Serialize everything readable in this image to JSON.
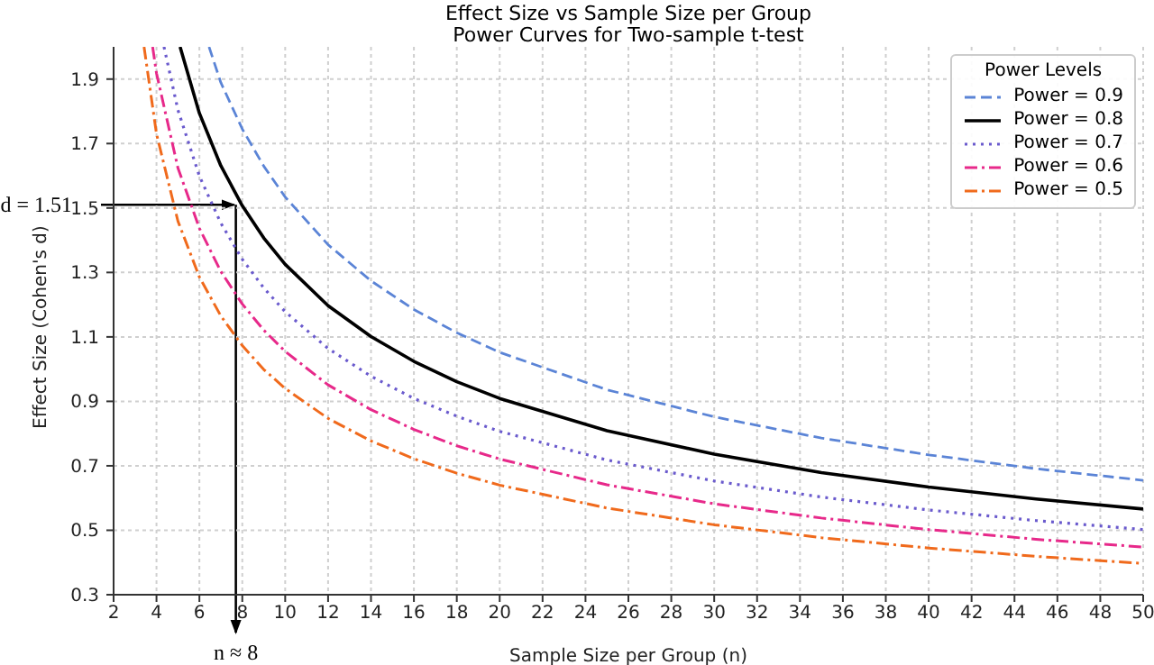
{
  "chart_data": {
    "type": "line",
    "title": "Effect Size vs Sample Size per Group",
    "subtitle": "Power Curves for Two-sample t-test",
    "xlabel": "Sample Size per Group (n)",
    "ylabel": "Effect Size (Cohen's d)",
    "legend_title": "Power Levels",
    "legend": "top right",
    "grid": true,
    "xlim": [
      2,
      50
    ],
    "xticks": [
      2,
      4,
      6,
      8,
      10,
      12,
      14,
      16,
      18,
      20,
      22,
      24,
      26,
      28,
      30,
      32,
      34,
      36,
      38,
      40,
      42,
      44,
      46,
      48,
      50
    ],
    "ylim": [
      0.3,
      2.0
    ],
    "yticks": [
      0.3,
      0.5,
      0.7,
      0.9,
      1.1,
      1.3,
      1.5,
      1.7,
      1.9
    ],
    "annotations": [
      {
        "text": "d = 1.51",
        "x": 7.7,
        "y": 1.51
      },
      "n ≈ 8"
    ],
    "series": [
      {
        "name": "Power = 0.9",
        "color": "#5b84d6",
        "line_style": "dashed",
        "x": [
          6.45,
          7,
          8,
          9,
          10,
          12,
          14,
          16,
          18,
          20,
          25,
          30,
          35,
          40,
          45,
          50
        ],
        "values": [
          2.0,
          1.889,
          1.745,
          1.63,
          1.534,
          1.386,
          1.274,
          1.185,
          1.113,
          1.052,
          0.936,
          0.852,
          0.786,
          0.734,
          0.691,
          0.655
        ]
      },
      {
        "name": "Power = 0.8",
        "color": "#000000",
        "line_style": "solid",
        "x": [
          5.1,
          6,
          7,
          8,
          9,
          10,
          12,
          14,
          16,
          18,
          20,
          25,
          30,
          35,
          40,
          45,
          50
        ],
        "values": [
          2.0,
          1.794,
          1.631,
          1.507,
          1.407,
          1.325,
          1.197,
          1.101,
          1.024,
          0.961,
          0.909,
          0.809,
          0.736,
          0.679,
          0.634,
          0.597,
          0.566
        ]
      },
      {
        "name": "Power = 0.7",
        "color": "#6a5acd",
        "line_style": "dotted",
        "x": [
          4.35,
          5,
          6,
          7,
          8,
          9,
          10,
          12,
          14,
          16,
          18,
          20,
          25,
          30,
          35,
          40,
          45,
          50
        ],
        "values": [
          2.0,
          1.804,
          1.599,
          1.453,
          1.341,
          1.252,
          1.178,
          1.064,
          0.978,
          0.909,
          0.854,
          0.807,
          0.718,
          0.653,
          0.603,
          0.563,
          0.53,
          0.502
        ]
      },
      {
        "name": "Power = 0.6",
        "color": "#e7298a",
        "line_style": "dashdot",
        "x": [
          3.82,
          4,
          5,
          6,
          7,
          8,
          9,
          10,
          12,
          14,
          16,
          18,
          20,
          25,
          30,
          35,
          40,
          45,
          50
        ],
        "values": [
          2.0,
          1.918,
          1.624,
          1.437,
          1.303,
          1.202,
          1.121,
          1.055,
          0.951,
          0.874,
          0.813,
          0.762,
          0.721,
          0.641,
          0.582,
          0.538,
          0.502,
          0.472,
          0.448
        ]
      },
      {
        "name": "Power = 0.5",
        "color": "#f06a1c",
        "line_style": "dashdot",
        "x": [
          3.42,
          4,
          5,
          6,
          7,
          8,
          9,
          10,
          12,
          14,
          16,
          18,
          20,
          25,
          30,
          35,
          40,
          45,
          50
        ],
        "values": [
          2.0,
          1.73,
          1.459,
          1.286,
          1.165,
          1.073,
          0.999,
          0.94,
          0.847,
          0.777,
          0.722,
          0.677,
          0.64,
          0.569,
          0.517,
          0.477,
          0.445,
          0.419,
          0.397
        ]
      }
    ]
  }
}
